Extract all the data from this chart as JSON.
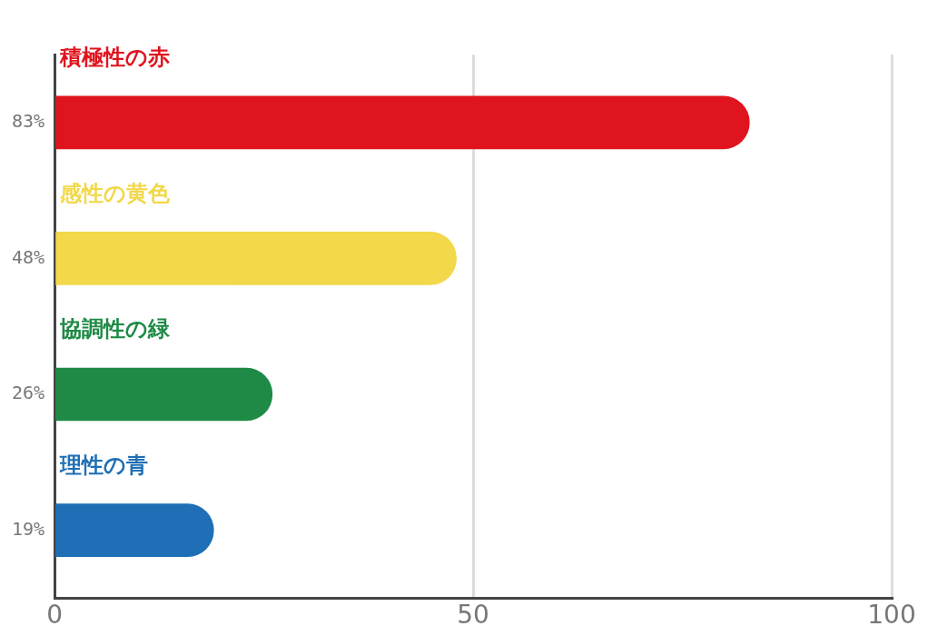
{
  "chart_data": {
    "type": "bar",
    "orientation": "horizontal",
    "categories": [
      "積極性の赤",
      "感性の黄色",
      "協調性の緑",
      "理性の青"
    ],
    "values": [
      83,
      48,
      26,
      19
    ],
    "value_labels": [
      "83%",
      "48%",
      "26%",
      "19%"
    ],
    "colors": [
      "#e0141e",
      "#f2d84a",
      "#1e8a45",
      "#1e6fb5"
    ],
    "xlim": [
      0,
      100
    ],
    "xticks": [
      0,
      50,
      100
    ],
    "grid": "x",
    "legend": false
  }
}
